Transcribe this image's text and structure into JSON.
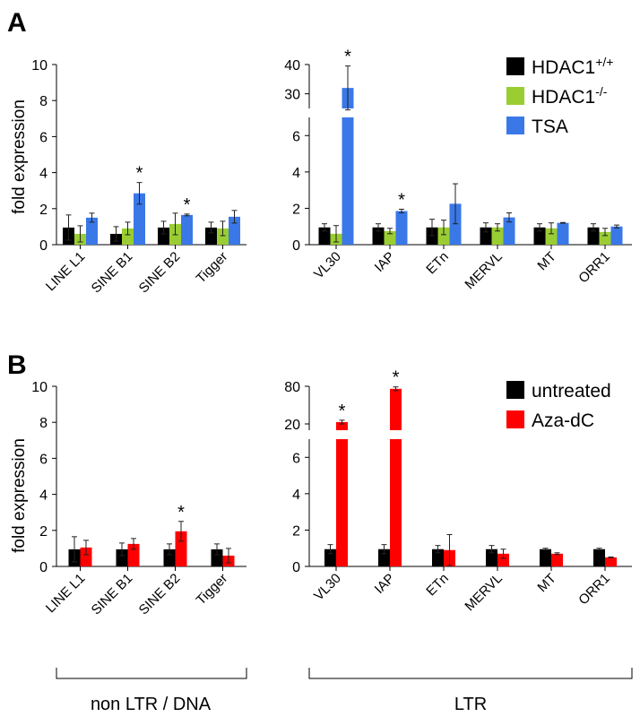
{
  "figure": {
    "y_axis_label": "fold expression",
    "group_labels": [
      "non LTR / DNA",
      "LTR"
    ]
  },
  "colors": {
    "black": "#000000",
    "green": "#9acd32",
    "blue": "#3a78e8",
    "red": "#ff0000"
  },
  "chart_data": [
    {
      "panel": "A",
      "type": "bar",
      "title": "",
      "legend": [
        {
          "name": "HDAC1",
          "sup": "+/+",
          "color": "#000000"
        },
        {
          "name": "HDAC1",
          "sup": "-/-",
          "color": "#9acd32"
        },
        {
          "name": "TSA",
          "sup": "",
          "color": "#3a78e8"
        }
      ],
      "legend_position": "top-right",
      "subcharts": [
        {
          "categories": [
            "LINE L1",
            "SINE B1",
            "SINE B2",
            "Tigger"
          ],
          "ylabel": "fold expression",
          "ylim": [
            0,
            10
          ],
          "ticks": [
            0,
            2,
            4,
            6,
            8,
            10
          ],
          "series": [
            {
              "values": [
                0.95,
                0.6,
                0.95,
                0.95
              ],
              "errors": [
                0.7,
                0.4,
                0.35,
                0.3
              ]
            },
            {
              "values": [
                0.6,
                0.9,
                1.15,
                0.9
              ],
              "errors": [
                0.45,
                0.35,
                0.6,
                0.4
              ]
            },
            {
              "values": [
                1.5,
                2.85,
                1.65,
                1.55
              ],
              "errors": [
                0.25,
                0.6,
                0.05,
                0.35
              ]
            }
          ],
          "significant": [
            {
              "category": 1,
              "series": 2
            },
            {
              "category": 2,
              "series": 2
            }
          ]
        },
        {
          "categories": [
            "VL30",
            "IAP",
            "ETn",
            "MERVL",
            "MT",
            "ORR1"
          ],
          "broken_axis": true,
          "lower_ylim": [
            0,
            7
          ],
          "lower_ticks": [
            0,
            2,
            4,
            6
          ],
          "upper_ylim": [
            25,
            40
          ],
          "upper_ticks": [
            30,
            40
          ],
          "series": [
            {
              "values": [
                0.95,
                0.95,
                0.95,
                0.95,
                0.95,
                0.95
              ],
              "errors": [
                0.2,
                0.2,
                0.45,
                0.25,
                0.2,
                0.2
              ]
            },
            {
              "values": [
                0.6,
                0.75,
                0.95,
                0.95,
                0.9,
                0.7
              ],
              "errors": [
                0.45,
                0.15,
                0.4,
                0.2,
                0.3,
                0.2
              ]
            },
            {
              "values": [
                32,
                1.85,
                2.25,
                1.5,
                1.2,
                1.0
              ],
              "errors": [
                7.5,
                0.1,
                1.1,
                0.25,
                0.02,
                0.08
              ]
            }
          ],
          "significant": [
            {
              "category": 0,
              "series": 2
            },
            {
              "category": 1,
              "series": 2
            }
          ]
        }
      ]
    },
    {
      "panel": "B",
      "type": "bar",
      "title": "",
      "legend": [
        {
          "name": "untreated",
          "sup": "",
          "color": "#000000"
        },
        {
          "name": "Aza-dC",
          "sup": "",
          "color": "#ff0000"
        }
      ],
      "legend_position": "top-right",
      "subcharts": [
        {
          "categories": [
            "LINE L1",
            "SINE B1",
            "SINE B2",
            "Tigger"
          ],
          "ylabel": "fold expression",
          "ylim": [
            0,
            10
          ],
          "ticks": [
            0,
            2,
            4,
            6,
            8,
            10
          ],
          "series": [
            {
              "values": [
                0.95,
                0.95,
                0.95,
                0.95
              ],
              "errors": [
                0.7,
                0.35,
                0.3,
                0.3
              ]
            },
            {
              "values": [
                1.05,
                1.25,
                1.95,
                0.6
              ],
              "errors": [
                0.4,
                0.3,
                0.55,
                0.4
              ]
            }
          ],
          "significant": [
            {
              "category": 2,
              "series": 1
            }
          ]
        },
        {
          "categories": [
            "VL30",
            "IAP",
            "ETn",
            "MERVL",
            "MT",
            "ORR1"
          ],
          "broken_axis": true,
          "lower_ylim": [
            0,
            7
          ],
          "lower_ticks": [
            0,
            2,
            4,
            6
          ],
          "upper_ylim": [
            10,
            80
          ],
          "upper_ticks": [
            20,
            80
          ],
          "upper_breaks": [
            20,
            80
          ],
          "upper_tick_pixel_ratio": [
            0,
            1
          ],
          "series": [
            {
              "values": [
                0.95,
                0.95,
                0.95,
                0.95,
                0.95,
                0.95
              ],
              "errors": [
                0.25,
                0.25,
                0.2,
                0.2,
                0.05,
                0.05
              ]
            },
            {
              "values": [
                23,
                76,
                0.9,
                0.7,
                0.7,
                0.5
              ],
              "errors": [
                3,
                3,
                0.85,
                0.25,
                0.05,
                0.02
              ]
            }
          ],
          "significant": [
            {
              "category": 0,
              "series": 1
            },
            {
              "category": 1,
              "series": 1
            }
          ]
        }
      ]
    }
  ]
}
